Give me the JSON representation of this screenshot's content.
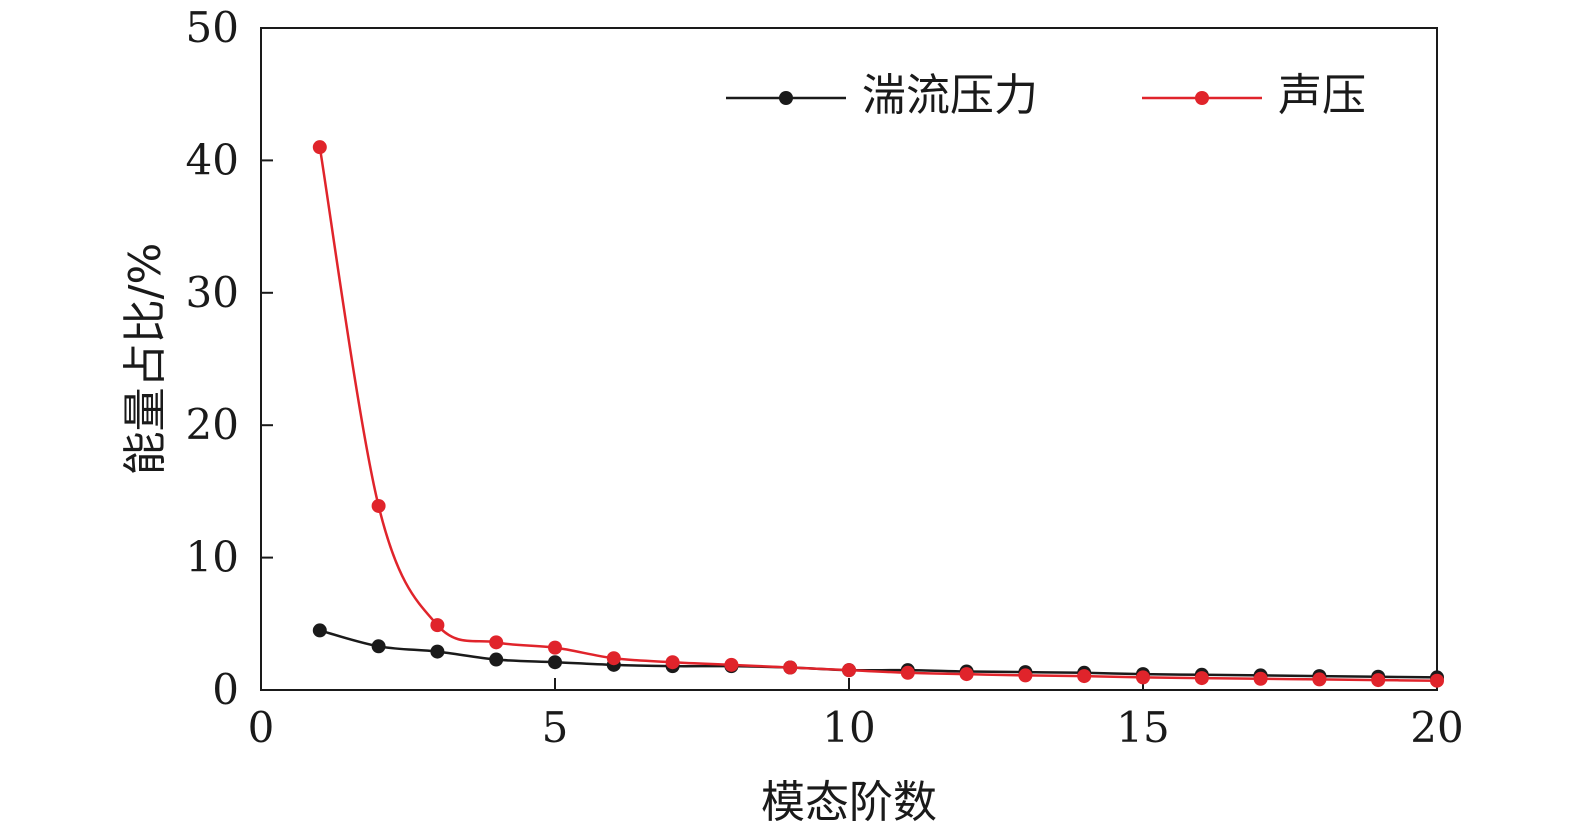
{
  "chart_data": {
    "type": "line",
    "xlabel": "模态阶数",
    "ylabel": "能量占比/%",
    "xlim": [
      0,
      20
    ],
    "ylim": [
      0,
      50
    ],
    "xticks": [
      0,
      5,
      10,
      15,
      20
    ],
    "yticks": [
      0,
      10,
      20,
      30,
      40,
      50
    ],
    "xtick_labels": [
      "0",
      "5",
      "10",
      "15",
      "20"
    ],
    "ytick_labels": [
      "0",
      "10",
      "20",
      "30",
      "40",
      "50"
    ],
    "grid": false,
    "legend_position": "top-right",
    "x": [
      1,
      2,
      3,
      4,
      5,
      6,
      7,
      8,
      9,
      10,
      11,
      12,
      13,
      14,
      15,
      16,
      17,
      18,
      19,
      20
    ],
    "series": [
      {
        "name": "湍流压力",
        "color": "#1a1a1a",
        "values": [
          4.5,
          3.3,
          2.9,
          2.3,
          2.1,
          1.9,
          1.8,
          1.8,
          1.7,
          1.5,
          1.5,
          1.4,
          1.35,
          1.3,
          1.2,
          1.15,
          1.1,
          1.05,
          1.0,
          0.95
        ]
      },
      {
        "name": "声压",
        "color": "#e0242b",
        "values": [
          41.0,
          13.9,
          4.9,
          3.6,
          3.2,
          2.4,
          2.1,
          1.9,
          1.7,
          1.5,
          1.3,
          1.2,
          1.1,
          1.05,
          0.95,
          0.9,
          0.85,
          0.8,
          0.75,
          0.7
        ]
      }
    ]
  }
}
